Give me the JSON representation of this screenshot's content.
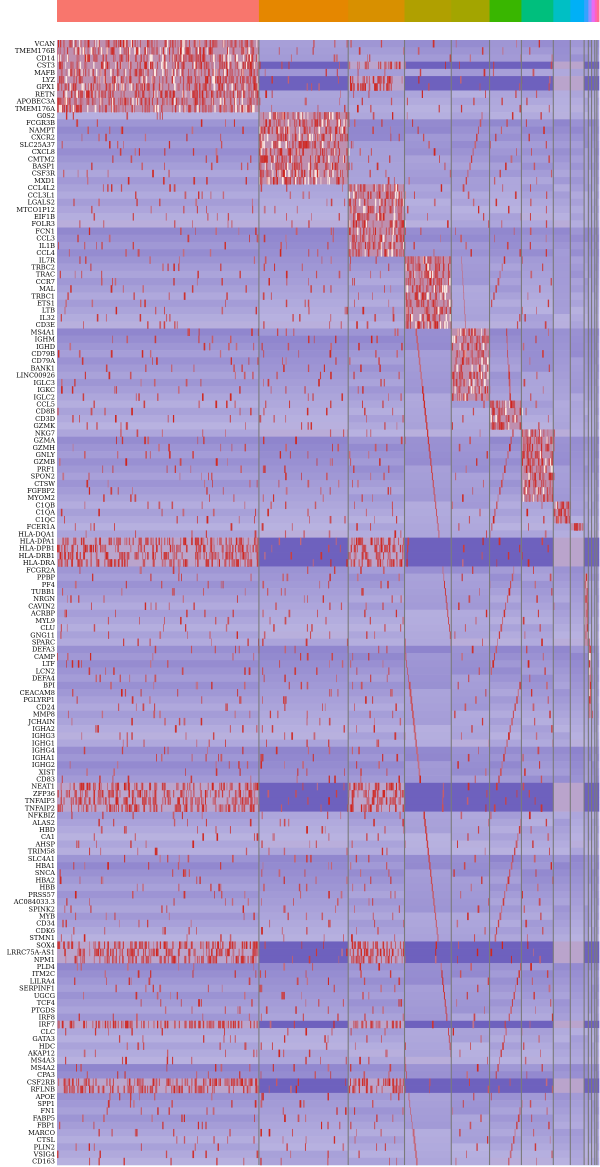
{
  "chart_data": {
    "type": "heatmap",
    "title": "",
    "xlabel": "",
    "ylabel": "",
    "colors": {
      "low": "#3d2ba8",
      "mid": "#b8b2e0",
      "high": "#d0241c"
    },
    "clusters": [
      {
        "id": 0,
        "color": "#f8766d",
        "cells": 190
      },
      {
        "id": 1,
        "color": "#e58700",
        "cells": 84
      },
      {
        "id": 2,
        "color": "#d89000",
        "cells": 53
      },
      {
        "id": 3,
        "color": "#b0a000",
        "cells": 44
      },
      {
        "id": 4,
        "color": "#a3a500",
        "cells": 36
      },
      {
        "id": 5,
        "color": "#39b600",
        "cells": 30
      },
      {
        "id": 6,
        "color": "#00bf7d",
        "cells": 30
      },
      {
        "id": 7,
        "color": "#00bfc4",
        "cells": 16
      },
      {
        "id": 8,
        "color": "#00b0f6",
        "cells": 13
      },
      {
        "id": 9,
        "color": "#35a2ff",
        "cells": 4
      },
      {
        "id": 10,
        "color": "#9590ff",
        "cells": 3
      },
      {
        "id": 11,
        "color": "#e76bf3",
        "cells": 3
      },
      {
        "id": 12,
        "color": "#ff62bc",
        "cells": 2
      },
      {
        "id": 13,
        "color": "#ff6c91",
        "cells": 2
      }
    ],
    "genes": [
      "VCAN",
      "TMEM176B",
      "CD14",
      "CST3",
      "MAFB",
      "LYZ",
      "GPX1",
      "RETN",
      "APOBEC3A",
      "TMEM176A",
      "G0S2",
      "FCGR3B",
      "NAMPT",
      "CXCR2",
      "SLC25A37",
      "CXCL8",
      "CMTM2",
      "BASP1",
      "CSF3R",
      "MXD1",
      "CCL4L2",
      "CCL3L1",
      "LGALS2",
      "MTCO1P12",
      "EIF1B",
      "FOLR3",
      "FCN1",
      "CCL3",
      "IL1B",
      "CCL4",
      "IL7R",
      "TRBC2",
      "TRAC",
      "CCR7",
      "MAL",
      "TRBC1",
      "ETS1",
      "LTB",
      "IL32",
      "CD3E",
      "MS4A1",
      "IGHM",
      "IGHD",
      "CD79B",
      "CD79A",
      "BANK1",
      "LINC00926",
      "IGLC3",
      "IGKC",
      "IGLC2",
      "CCL5",
      "CD8B",
      "CD3D",
      "GZMK",
      "NKG7",
      "GZMA",
      "GZMH",
      "GNLY",
      "GZMB",
      "PRF1",
      "SPON2",
      "CTSW",
      "FGFBP2",
      "MYOM2",
      "C1QB",
      "C1QA",
      "C1QC",
      "FCER1A",
      "HLA-DQA1",
      "HLA-DPA1",
      "HLA-DPB1",
      "HLA-DRB1",
      "HLA-DRA",
      "FCGR2A",
      "PPBP",
      "PF4",
      "TUBB1",
      "NRGN",
      "CAVIN2",
      "ACRBP",
      "MYL9",
      "CLU",
      "GNG11",
      "SPARC",
      "DEFA3",
      "CAMP",
      "LTF",
      "LCN2",
      "DEFA4",
      "BPI",
      "CEACAM8",
      "PGLYRP1",
      "CD24",
      "MMP8",
      "JCHAIN",
      "IGHA2",
      "IGHG3",
      "IGHG1",
      "IGHG4",
      "IGHA1",
      "IGHG2",
      "XIST",
      "CD83",
      "NEAT1",
      "ZFP36",
      "TNFAIP3",
      "TNFAIP2",
      "NFKBIZ",
      "ALAS2",
      "HBD",
      "CA1",
      "AHSP",
      "TRIM58",
      "SLC4A1",
      "HBA1",
      "SNCA",
      "HBA2",
      "HBB",
      "PRSS57",
      "AC084033.3",
      "SPINK2",
      "MYB",
      "CD34",
      "CDK6",
      "STMN1",
      "SOX4",
      "LRRC75A-AS1",
      "NPM1",
      "PLD4",
      "ITM2C",
      "LILRA4",
      "SERPINF1",
      "UGCG",
      "TCF4",
      "PTGDS",
      "IRF8",
      "IRF7",
      "CLC",
      "GATA3",
      "HDC",
      "AKAP12",
      "MS4A3",
      "MS4A2",
      "CPA3",
      "CSF2RB",
      "RFLNB",
      "APOE",
      "SPP1",
      "FN1",
      "FABP5",
      "FBP1",
      "MARCO",
      "CTSL",
      "PLIN2",
      "VSIG4",
      "CD163"
    ],
    "marker_blocks": [
      {
        "cluster": 0,
        "genes": [
          "VCAN",
          "TMEM176B",
          "CD14",
          "CST3",
          "MAFB",
          "LYZ",
          "GPX1",
          "RETN",
          "APOBEC3A",
          "TMEM176A"
        ]
      },
      {
        "cluster": 1,
        "genes": [
          "G0S2",
          "FCGR3B",
          "NAMPT",
          "CXCR2",
          "SLC25A37",
          "CXCL8",
          "CMTM2",
          "BASP1",
          "CSF3R",
          "MXD1"
        ]
      },
      {
        "cluster": 2,
        "genes": [
          "CCL4L2",
          "CCL3L1",
          "LGALS2",
          "MTCO1P12",
          "EIF1B",
          "FOLR3",
          "FCN1",
          "CCL3",
          "IL1B",
          "CCL4"
        ]
      },
      {
        "cluster": 3,
        "genes": [
          "IL7R",
          "TRBC2",
          "TRAC",
          "CCR7",
          "MAL",
          "TRBC1",
          "ETS1",
          "LTB",
          "IL32",
          "CD3E"
        ]
      },
      {
        "cluster": 4,
        "genes": [
          "MS4A1",
          "IGHM",
          "IGHD",
          "CD79B",
          "CD79A",
          "BANK1",
          "LINC00926",
          "IGLC3",
          "IGKC",
          "IGLC2"
        ]
      },
      {
        "cluster": 5,
        "genes": [
          "CCL5",
          "CD8B",
          "CD3D",
          "GZMK"
        ]
      },
      {
        "cluster": 6,
        "genes": [
          "NKG7",
          "GZMA",
          "GZMH",
          "GNLY",
          "GZMB",
          "PRF1",
          "SPON2",
          "CTSW",
          "FGFBP2",
          "MYOM2"
        ]
      },
      {
        "cluster": 7,
        "genes": [
          "C1QB",
          "C1QA",
          "C1QC"
        ]
      },
      {
        "cluster": 8,
        "genes": [
          "FCER1A"
        ]
      },
      {
        "cluster": 9,
        "genes": [
          "PPBP",
          "PF4",
          "TUBB1",
          "NRGN",
          "CAVIN2",
          "ACRBP",
          "MYL9",
          "CLU",
          "GNG11",
          "SPARC"
        ]
      },
      {
        "cluster": 10,
        "genes": [
          "DEFA3",
          "CAMP",
          "LTF",
          "LCN2",
          "DEFA4",
          "BPI",
          "CEACAM8",
          "PGLYRP1",
          "CD24",
          "MMP8"
        ]
      }
    ],
    "broad_genes": [
      "CST3",
      "LYZ",
      "GPX1",
      "HLA-DPA1",
      "HLA-DPB1",
      "HLA-DRB1",
      "HLA-DRA",
      "NEAT1",
      "ZFP36",
      "TNFAIP3",
      "TNFAIP2",
      "NPM1",
      "LRRC75A-AS1",
      "IRF7",
      "CSF2RB",
      "RFLNB",
      "SOX4"
    ],
    "grid": false,
    "legend": "none"
  }
}
